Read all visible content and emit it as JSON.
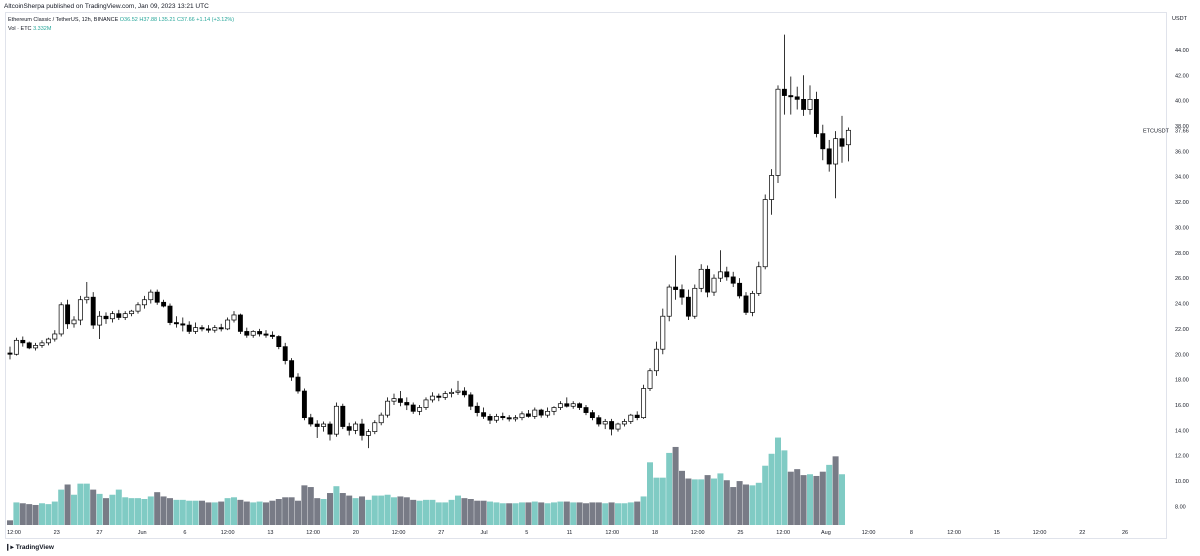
{
  "publisher_line": "AltcoinSherpa published on TradingView.com, Jan 09, 2023 13:21 UTC",
  "legend": {
    "symbol": "Ethereum Classic / TetherUS, 12h, BINANCE",
    "ohlc": "O36.52 H37.88 L35.21 C37.66 +1.14 (+3.12%)",
    "volume_label": "Vol · ETC",
    "volume_value": "3.332M"
  },
  "logo_text": "TradingView",
  "colors": {
    "up_volume": "#80cbc4",
    "down_volume": "#787b86",
    "candle_up": "#ffffff",
    "candle_down": "#000000",
    "price_label": "#131722"
  },
  "chart_data": {
    "type": "candlestick",
    "symbol_label": "ETCUSDT",
    "last_price": "37.66",
    "y_unit": "USDT",
    "ylim": [
      6.3,
      46.2
    ],
    "y_ticks": [
      "8.00",
      "10.00",
      "12.00",
      "14.00",
      "16.00",
      "18.00",
      "20.00",
      "22.00",
      "24.00",
      "26.00",
      "28.00",
      "30.00",
      "32.00",
      "34.00",
      "36.00",
      "38.00",
      "40.00",
      "42.00",
      "44.00"
    ],
    "x_ticks": [
      "12:00",
      "23",
      "27",
      "Jun",
      "6",
      "12:00",
      "13",
      "12:00",
      "20",
      "12:00",
      "27",
      "Jul",
      "5",
      "11",
      "12:00",
      "18",
      "12:00",
      "25",
      "12:00",
      "Aug",
      "12:00",
      "8",
      "12:00",
      "15",
      "12:00",
      "22",
      "26"
    ],
    "grid": false,
    "candles": [
      [
        20.1,
        20.6,
        19.6,
        20.0
      ],
      [
        20.0,
        21.3,
        19.9,
        21.1
      ],
      [
        21.1,
        21.4,
        20.6,
        20.9
      ],
      [
        20.9,
        21.0,
        20.4,
        20.5
      ],
      [
        20.5,
        20.9,
        20.3,
        20.7
      ],
      [
        20.7,
        21.1,
        20.5,
        20.9
      ],
      [
        20.9,
        21.3,
        20.7,
        21.2
      ],
      [
        21.2,
        21.9,
        21.0,
        21.6
      ],
      [
        21.6,
        24.1,
        21.4,
        23.9
      ],
      [
        23.9,
        24.3,
        22.0,
        22.4
      ],
      [
        22.4,
        23.0,
        22.1,
        22.7
      ],
      [
        22.7,
        24.6,
        22.3,
        24.3
      ],
      [
        24.3,
        25.7,
        24.0,
        24.5
      ],
      [
        24.5,
        24.9,
        22.0,
        22.3
      ],
      [
        22.3,
        23.4,
        21.2,
        23.0
      ],
      [
        23.0,
        23.3,
        22.4,
        22.8
      ],
      [
        22.8,
        23.4,
        22.5,
        23.2
      ],
      [
        23.2,
        23.5,
        22.7,
        22.9
      ],
      [
        22.9,
        23.4,
        22.7,
        23.2
      ],
      [
        23.2,
        23.5,
        23.0,
        23.4
      ],
      [
        23.4,
        24.1,
        23.2,
        23.9
      ],
      [
        23.9,
        24.6,
        23.6,
        24.3
      ],
      [
        24.3,
        25.1,
        24.0,
        24.9
      ],
      [
        24.9,
        25.1,
        23.9,
        24.1
      ],
      [
        24.1,
        24.3,
        23.7,
        23.8
      ],
      [
        23.8,
        24.0,
        22.3,
        22.5
      ],
      [
        22.5,
        23.0,
        22.1,
        22.4
      ],
      [
        22.4,
        22.9,
        21.8,
        22.3
      ],
      [
        22.3,
        22.6,
        21.6,
        21.8
      ],
      [
        21.8,
        22.5,
        21.6,
        22.1
      ],
      [
        22.1,
        22.3,
        21.8,
        22.0
      ],
      [
        22.0,
        22.3,
        21.7,
        21.9
      ],
      [
        21.9,
        22.3,
        21.7,
        22.1
      ],
      [
        22.1,
        22.4,
        21.8,
        22.0
      ],
      [
        22.0,
        22.9,
        21.9,
        22.7
      ],
      [
        22.7,
        23.4,
        22.5,
        23.1
      ],
      [
        23.1,
        23.2,
        21.6,
        21.8
      ],
      [
        21.8,
        22.1,
        21.3,
        21.5
      ],
      [
        21.5,
        21.9,
        21.3,
        21.8
      ],
      [
        21.8,
        22.0,
        21.4,
        21.6
      ],
      [
        21.6,
        21.9,
        21.3,
        21.5
      ],
      [
        21.5,
        21.8,
        21.2,
        21.4
      ],
      [
        21.4,
        21.5,
        20.4,
        20.6
      ],
      [
        20.6,
        20.9,
        19.2,
        19.5
      ],
      [
        19.5,
        19.7,
        17.9,
        18.2
      ],
      [
        18.2,
        18.5,
        16.9,
        17.1
      ],
      [
        17.1,
        17.3,
        14.8,
        15.0
      ],
      [
        15.0,
        15.3,
        14.3,
        14.5
      ],
      [
        14.5,
        14.8,
        13.4,
        14.3
      ],
      [
        14.3,
        14.7,
        13.9,
        14.5
      ],
      [
        14.5,
        14.7,
        13.2,
        13.7
      ],
      [
        13.7,
        16.2,
        13.5,
        15.9
      ],
      [
        15.9,
        16.1,
        14.1,
        14.3
      ],
      [
        14.3,
        14.6,
        13.6,
        14.0
      ],
      [
        14.0,
        14.7,
        13.7,
        14.5
      ],
      [
        14.5,
        14.9,
        13.2,
        13.6
      ],
      [
        13.6,
        14.1,
        12.6,
        13.9
      ],
      [
        13.9,
        14.8,
        13.7,
        14.6
      ],
      [
        14.6,
        15.4,
        14.4,
        15.2
      ],
      [
        15.2,
        16.6,
        15.0,
        16.3
      ],
      [
        16.3,
        16.9,
        16.0,
        16.5
      ],
      [
        16.5,
        17.1,
        15.9,
        16.2
      ],
      [
        16.2,
        16.6,
        15.6,
        16.0
      ],
      [
        16.0,
        16.2,
        15.3,
        15.5
      ],
      [
        15.5,
        16.0,
        15.2,
        15.8
      ],
      [
        15.8,
        16.6,
        15.6,
        16.4
      ],
      [
        16.4,
        17.0,
        16.2,
        16.7
      ],
      [
        16.7,
        16.9,
        16.3,
        16.6
      ],
      [
        16.6,
        17.1,
        16.4,
        16.9
      ],
      [
        16.9,
        17.3,
        16.6,
        17.0
      ],
      [
        17.0,
        17.9,
        16.8,
        17.1
      ],
      [
        17.1,
        17.4,
        16.6,
        16.8
      ],
      [
        16.8,
        17.0,
        15.6,
        15.9
      ],
      [
        15.9,
        16.2,
        15.1,
        15.4
      ],
      [
        15.4,
        15.8,
        14.9,
        15.1
      ],
      [
        15.1,
        15.3,
        14.5,
        14.8
      ],
      [
        14.8,
        15.3,
        14.6,
        15.1
      ],
      [
        15.1,
        15.4,
        14.8,
        15.0
      ],
      [
        15.0,
        15.2,
        14.7,
        14.9
      ],
      [
        14.9,
        15.2,
        14.7,
        15.0
      ],
      [
        15.0,
        15.5,
        14.8,
        15.3
      ],
      [
        15.3,
        15.6,
        15.0,
        15.1
      ],
      [
        15.1,
        15.8,
        14.9,
        15.6
      ],
      [
        15.6,
        15.7,
        15.0,
        15.2
      ],
      [
        15.2,
        15.8,
        15.0,
        15.5
      ],
      [
        15.5,
        15.9,
        15.2,
        15.8
      ],
      [
        15.8,
        16.3,
        15.6,
        16.1
      ],
      [
        16.1,
        16.6,
        15.8,
        15.9
      ],
      [
        15.9,
        16.3,
        15.7,
        16.1
      ],
      [
        16.1,
        16.2,
        15.6,
        15.8
      ],
      [
        15.8,
        16.0,
        15.2,
        15.4
      ],
      [
        15.4,
        15.6,
        14.8,
        15.0
      ],
      [
        15.0,
        15.2,
        14.3,
        14.5
      ],
      [
        14.5,
        14.9,
        14.1,
        14.7
      ],
      [
        14.7,
        14.9,
        13.6,
        14.1
      ],
      [
        14.1,
        14.6,
        13.9,
        14.5
      ],
      [
        14.5,
        14.9,
        14.3,
        14.7
      ],
      [
        14.7,
        15.3,
        14.5,
        15.2
      ],
      [
        15.2,
        15.5,
        14.8,
        15.0
      ],
      [
        15.0,
        17.6,
        14.9,
        17.3
      ],
      [
        17.3,
        18.9,
        17.1,
        18.7
      ],
      [
        18.7,
        21.0,
        18.3,
        20.4
      ],
      [
        20.4,
        23.6,
        20.0,
        23.0
      ],
      [
        23.0,
        25.5,
        22.6,
        25.3
      ],
      [
        25.3,
        27.8,
        24.3,
        25.1
      ],
      [
        25.1,
        25.5,
        23.9,
        24.5
      ],
      [
        24.5,
        25.1,
        22.7,
        23.0
      ],
      [
        23.0,
        25.5,
        22.8,
        25.2
      ],
      [
        25.2,
        27.1,
        24.9,
        26.7
      ],
      [
        26.7,
        27.0,
        24.5,
        24.9
      ],
      [
        24.9,
        26.3,
        24.6,
        26.0
      ],
      [
        26.0,
        28.2,
        25.7,
        26.5
      ],
      [
        26.5,
        26.9,
        25.8,
        26.1
      ],
      [
        26.1,
        26.5,
        25.3,
        25.6
      ],
      [
        25.6,
        26.0,
        24.4,
        24.6
      ],
      [
        24.6,
        24.9,
        23.1,
        23.3
      ],
      [
        23.3,
        25.0,
        23.0,
        24.8
      ],
      [
        24.8,
        27.3,
        24.6,
        26.9
      ],
      [
        26.9,
        32.6,
        26.7,
        32.2
      ],
      [
        32.2,
        34.6,
        31.0,
        34.1
      ],
      [
        34.1,
        41.2,
        33.5,
        40.9
      ],
      [
        40.9,
        45.2,
        38.9,
        40.4
      ],
      [
        40.4,
        41.9,
        38.9,
        40.3
      ],
      [
        40.3,
        41.1,
        39.3,
        40.1
      ],
      [
        40.1,
        42.0,
        38.8,
        39.3
      ],
      [
        39.3,
        41.2,
        38.9,
        40.1
      ],
      [
        40.1,
        40.7,
        37.1,
        37.4
      ],
      [
        37.4,
        38.1,
        35.3,
        36.2
      ],
      [
        36.2,
        36.9,
        34.4,
        35.0
      ],
      [
        35.0,
        37.6,
        32.3,
        37.0
      ],
      [
        37.0,
        38.8,
        35.1,
        36.4
      ],
      [
        36.52,
        37.88,
        35.21,
        37.66
      ]
    ],
    "volumes": [
      [
        5.0,
        0
      ],
      [
        7.1,
        1
      ],
      [
        7.0,
        0
      ],
      [
        6.9,
        0
      ],
      [
        6.8,
        0
      ],
      [
        7.0,
        1
      ],
      [
        6.9,
        1
      ],
      [
        7.2,
        1
      ],
      [
        8.6,
        1
      ],
      [
        9.2,
        0
      ],
      [
        8.0,
        1
      ],
      [
        9.3,
        1
      ],
      [
        9.3,
        1
      ],
      [
        8.6,
        0
      ],
      [
        8.1,
        1
      ],
      [
        7.6,
        0
      ],
      [
        8.0,
        1
      ],
      [
        8.6,
        1
      ],
      [
        7.7,
        1
      ],
      [
        7.6,
        1
      ],
      [
        7.6,
        1
      ],
      [
        7.5,
        1
      ],
      [
        7.8,
        1
      ],
      [
        8.3,
        0
      ],
      [
        7.8,
        0
      ],
      [
        7.6,
        0
      ],
      [
        7.4,
        1
      ],
      [
        7.4,
        1
      ],
      [
        7.3,
        1
      ],
      [
        7.3,
        1
      ],
      [
        7.3,
        0
      ],
      [
        7.1,
        0
      ],
      [
        7.1,
        1
      ],
      [
        7.2,
        0
      ],
      [
        7.6,
        1
      ],
      [
        7.7,
        1
      ],
      [
        7.4,
        0
      ],
      [
        7.2,
        0
      ],
      [
        7.1,
        1
      ],
      [
        7.2,
        1
      ],
      [
        7.1,
        0
      ],
      [
        7.3,
        0
      ],
      [
        7.5,
        0
      ],
      [
        7.7,
        0
      ],
      [
        7.7,
        0
      ],
      [
        7.3,
        0
      ],
      [
        9.1,
        0
      ],
      [
        8.9,
        0
      ],
      [
        7.6,
        0
      ],
      [
        7.5,
        1
      ],
      [
        8.2,
        0
      ],
      [
        9.0,
        1
      ],
      [
        8.2,
        0
      ],
      [
        7.9,
        0
      ],
      [
        7.6,
        1
      ],
      [
        7.8,
        0
      ],
      [
        7.4,
        1
      ],
      [
        7.9,
        1
      ],
      [
        7.9,
        1
      ],
      [
        8.0,
        1
      ],
      [
        7.7,
        1
      ],
      [
        7.8,
        0
      ],
      [
        7.7,
        0
      ],
      [
        7.4,
        0
      ],
      [
        7.3,
        1
      ],
      [
        7.4,
        1
      ],
      [
        7.4,
        1
      ],
      [
        7.1,
        1
      ],
      [
        7.1,
        1
      ],
      [
        7.4,
        1
      ],
      [
        7.9,
        1
      ],
      [
        7.6,
        0
      ],
      [
        7.5,
        0
      ],
      [
        7.3,
        0
      ],
      [
        7.3,
        0
      ],
      [
        7.2,
        1
      ],
      [
        7.1,
        1
      ],
      [
        7.0,
        1
      ],
      [
        7.0,
        0
      ],
      [
        7.0,
        1
      ],
      [
        7.1,
        1
      ],
      [
        7.1,
        0
      ],
      [
        7.2,
        1
      ],
      [
        7.1,
        0
      ],
      [
        7.0,
        1
      ],
      [
        7.1,
        1
      ],
      [
        7.2,
        1
      ],
      [
        7.2,
        0
      ],
      [
        7.1,
        1
      ],
      [
        7.1,
        0
      ],
      [
        7.0,
        0
      ],
      [
        7.1,
        0
      ],
      [
        7.1,
        0
      ],
      [
        7.0,
        1
      ],
      [
        7.1,
        0
      ],
      [
        7.0,
        1
      ],
      [
        7.0,
        1
      ],
      [
        7.1,
        1
      ],
      [
        7.2,
        0
      ],
      [
        7.8,
        1
      ],
      [
        11.8,
        1
      ],
      [
        10.0,
        1
      ],
      [
        10.0,
        1
      ],
      [
        12.9,
        1
      ],
      [
        13.6,
        0
      ],
      [
        10.8,
        0
      ],
      [
        9.9,
        0
      ],
      [
        9.8,
        1
      ],
      [
        9.8,
        1
      ],
      [
        10.3,
        0
      ],
      [
        9.9,
        1
      ],
      [
        10.5,
        1
      ],
      [
        9.7,
        0
      ],
      [
        8.9,
        0
      ],
      [
        9.6,
        0
      ],
      [
        9.2,
        0
      ],
      [
        9.1,
        1
      ],
      [
        9.4,
        1
      ],
      [
        11.4,
        1
      ],
      [
        12.8,
        1
      ],
      [
        14.7,
        1
      ],
      [
        13.2,
        1
      ],
      [
        10.7,
        0
      ],
      [
        11.0,
        0
      ],
      [
        10.3,
        0
      ],
      [
        10.4,
        1
      ],
      [
        10.2,
        0
      ],
      [
        10.7,
        0
      ],
      [
        11.5,
        1
      ],
      [
        12.5,
        0
      ],
      [
        10.4,
        1
      ]
    ]
  }
}
